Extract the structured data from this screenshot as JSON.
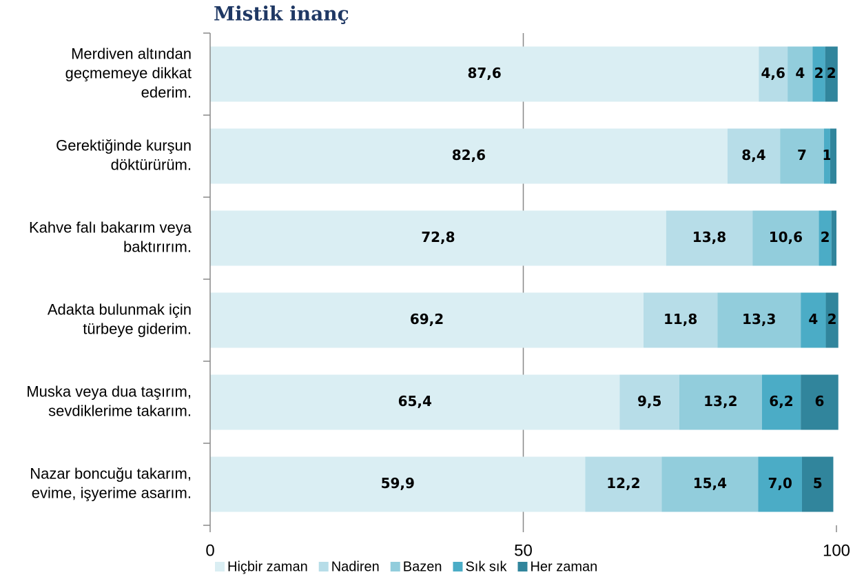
{
  "chart_data": {
    "type": "stacked-bar-horizontal",
    "title": "Mistik inanç",
    "categories": [
      [
        "Merdiven altından",
        "geçmemeye dikkat",
        "ederim."
      ],
      [
        "Gerektiğinde kurşun",
        "döktürürüm."
      ],
      [
        "Kahve falı bakarım veya",
        "baktırırım."
      ],
      [
        "Adakta bulunmak için",
        "türbeye giderim."
      ],
      [
        "Muska veya dua taşırım,",
        "sevdiklerime takarım."
      ],
      [
        "Nazar boncuğu takarım,",
        "evime, işyerime asarım."
      ]
    ],
    "series": [
      {
        "name": "Hiçbir zaman",
        "color": "#daeef3",
        "values": [
          87.6,
          82.6,
          72.8,
          69.2,
          65.4,
          59.9
        ],
        "value_labels": [
          "87,6",
          "82,6",
          "72,8",
          "69,2",
          "65,4",
          "59,9"
        ]
      },
      {
        "name": "Nadiren",
        "color": "#b7dde8",
        "values": [
          4.6,
          8.4,
          13.8,
          11.8,
          9.5,
          12.2
        ],
        "value_labels": [
          "4,6",
          "8,4",
          "13,8",
          "11,8",
          "9,5",
          "12,2"
        ]
      },
      {
        "name": "Bazen",
        "color": "#92cddc",
        "values": [
          4,
          7,
          10.6,
          13.3,
          13.2,
          15.4
        ],
        "value_labels": [
          "4",
          "7",
          "10,6",
          "13,3",
          "13,2",
          "15,4"
        ]
      },
      {
        "name": "Sık sık",
        "color": "#4bacc6",
        "values": [
          2,
          1,
          2,
          4,
          6.2,
          7.0
        ],
        "value_labels": [
          "2",
          "1",
          "2",
          "4",
          "6,2",
          "7,0"
        ]
      },
      {
        "name": "Her zaman",
        "color": "#31859c",
        "values": [
          2,
          1,
          0.8,
          2,
          6,
          5
        ],
        "value_labels": [
          "2",
          null,
          null,
          "2",
          "6",
          "5"
        ]
      }
    ],
    "xlim": [
      0,
      100
    ],
    "xticks": [
      0,
      50,
      100
    ],
    "grid": true,
    "legend": "bottom"
  }
}
